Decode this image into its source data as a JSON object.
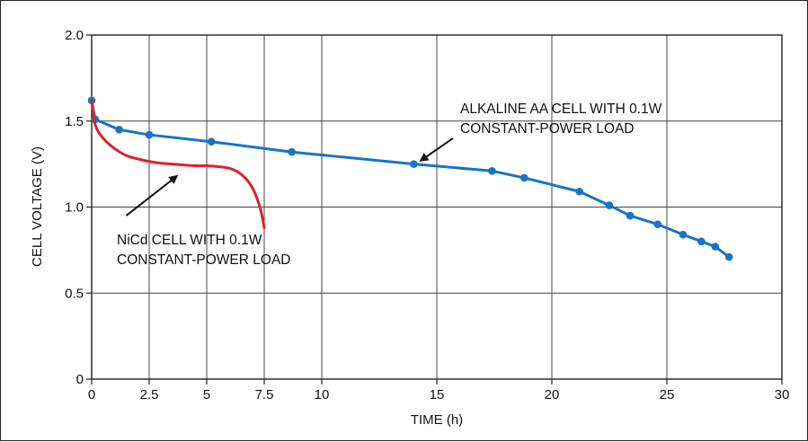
{
  "chart_data": {
    "type": "line",
    "xlabel": "TIME (h)",
    "ylabel": "CELL VOLTAGE (V)",
    "xlim": [
      0,
      30
    ],
    "ylim": [
      0,
      2.0
    ],
    "x_ticks": [
      0,
      2.5,
      5,
      7.5,
      10,
      15,
      20,
      25,
      30
    ],
    "x_tick_labels": [
      "0",
      "2.5",
      "5",
      "7.5",
      "10",
      "15",
      "20",
      "25",
      "30"
    ],
    "y_ticks": [
      0,
      0.5,
      1.0,
      1.5,
      2.0
    ],
    "y_tick_labels": [
      "0",
      "0.5",
      "1.0",
      "1.5",
      "2.0"
    ],
    "grid": true,
    "series": [
      {
        "color": "#1874c4",
        "markers": true,
        "x": [
          0.0,
          0.15,
          1.2,
          2.5,
          5.2,
          8.7,
          14.0,
          17.4,
          18.8,
          21.2,
          22.5,
          23.4,
          24.6,
          25.7,
          26.5,
          27.1,
          27.7
        ],
        "y": [
          1.62,
          1.51,
          1.45,
          1.42,
          1.38,
          1.32,
          1.25,
          1.21,
          1.17,
          1.09,
          1.01,
          0.95,
          0.9,
          0.84,
          0.8,
          0.77,
          0.71
        ]
      },
      {
        "color": "#e0202a",
        "markers": false,
        "x": [
          0.0,
          0.15,
          0.5,
          1.0,
          1.5,
          2.0,
          2.5,
          3.0,
          3.5,
          4.0,
          4.5,
          5.0,
          5.5,
          6.0,
          6.4,
          6.8,
          7.1,
          7.35,
          7.5
        ],
        "y": [
          1.62,
          1.48,
          1.4,
          1.34,
          1.3,
          1.28,
          1.265,
          1.255,
          1.25,
          1.245,
          1.24,
          1.24,
          1.235,
          1.225,
          1.2,
          1.15,
          1.08,
          0.98,
          0.88
        ]
      }
    ],
    "annotations": [
      {
        "lines": [
          "ALKALINE AA CELL WITH 0.1W",
          "CONSTANT-POWER LOAD"
        ],
        "arrow_to": [
          14.3,
          1.27
        ],
        "arrow_from": [
          15.7,
          1.4
        ]
      },
      {
        "lines": [
          "NiCd CELL WITH 0.1W",
          "CONSTANT-POWER LOAD"
        ],
        "arrow_to": [
          3.7,
          1.18
        ],
        "arrow_from": [
          1.5,
          0.95
        ]
      }
    ]
  }
}
